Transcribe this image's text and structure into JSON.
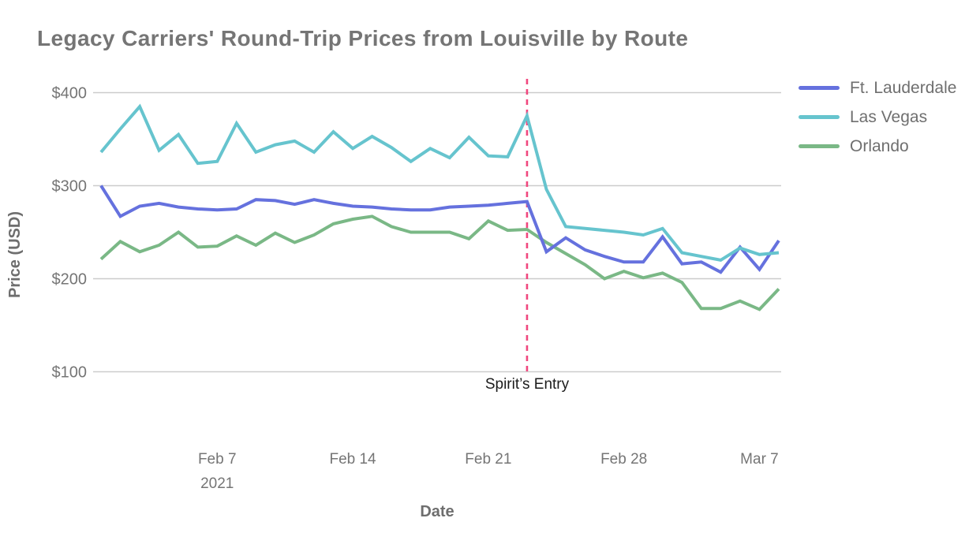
{
  "title": "Legacy Carriers' Round-Trip Prices from Louisville by Route",
  "y_axis": {
    "title": "Price (USD)",
    "ticks": [
      {
        "label": "$400",
        "value": 400
      },
      {
        "label": "$300",
        "value": 300
      },
      {
        "label": "$200",
        "value": 200
      },
      {
        "label": "$100",
        "value": 100
      }
    ]
  },
  "x_axis": {
    "title": "Date",
    "ticks": [
      {
        "label": "Feb 7",
        "sublabel": "2021",
        "day_index": 6
      },
      {
        "label": "Feb 14",
        "day_index": 13
      },
      {
        "label": "Feb 21",
        "day_index": 20
      },
      {
        "label": "Feb 28",
        "day_index": 27
      },
      {
        "label": "Mar 7",
        "day_index": 34
      }
    ]
  },
  "annotation": {
    "label": "Spirit’s Entry",
    "date": "Feb 23",
    "day_index": 22,
    "line_color": "#f0477e"
  },
  "chart_data": {
    "type": "line",
    "title": "Legacy Carriers' Round-Trip Prices from Louisville by Route",
    "xlabel": "Date",
    "ylabel": "Price (USD)",
    "grid": "horizontal",
    "legend_position": "top-right",
    "ylim": [
      100,
      415
    ],
    "x": [
      "Feb 1",
      "Feb 2",
      "Feb 3",
      "Feb 4",
      "Feb 5",
      "Feb 6",
      "Feb 7",
      "Feb 8",
      "Feb 9",
      "Feb 10",
      "Feb 11",
      "Feb 12",
      "Feb 13",
      "Feb 14",
      "Feb 15",
      "Feb 16",
      "Feb 17",
      "Feb 18",
      "Feb 19",
      "Feb 20",
      "Feb 21",
      "Feb 22",
      "Feb 23",
      "Feb 24",
      "Feb 25",
      "Feb 26",
      "Feb 27",
      "Feb 28",
      "Mar 1",
      "Mar 2",
      "Mar 3",
      "Mar 4",
      "Mar 5",
      "Mar 6",
      "Mar 7",
      "Mar 8"
    ],
    "series": [
      {
        "name": "Ft. Lauderdale",
        "color": "#6571de",
        "values": [
          300,
          267,
          278,
          281,
          277,
          275,
          274,
          275,
          285,
          284,
          280,
          285,
          281,
          278,
          277,
          275,
          274,
          274,
          277,
          278,
          279,
          281,
          283,
          229,
          244,
          231,
          224,
          218,
          218,
          245,
          216,
          218,
          207,
          234,
          210,
          241
        ]
      },
      {
        "name": "Las Vegas",
        "color": "#66c4ce",
        "values": [
          336,
          361,
          385,
          338,
          355,
          324,
          326,
          367,
          336,
          344,
          348,
          336,
          358,
          340,
          353,
          341,
          326,
          340,
          330,
          352,
          332,
          331,
          375,
          296,
          256,
          254,
          252,
          250,
          247,
          254,
          228,
          224,
          220,
          233,
          226,
          228
        ]
      },
      {
        "name": "Orlando",
        "color": "#7ab886",
        "values": [
          221,
          240,
          229,
          236,
          250,
          234,
          235,
          246,
          236,
          249,
          239,
          247,
          259,
          264,
          267,
          256,
          250,
          250,
          250,
          243,
          262,
          252,
          253,
          239,
          227,
          215,
          200,
          208,
          201,
          206,
          196,
          168,
          168,
          176,
          167,
          189
        ]
      }
    ],
    "annotations": [
      {
        "type": "vline",
        "x": "Feb 23",
        "label": "Spirit’s Entry"
      }
    ]
  }
}
